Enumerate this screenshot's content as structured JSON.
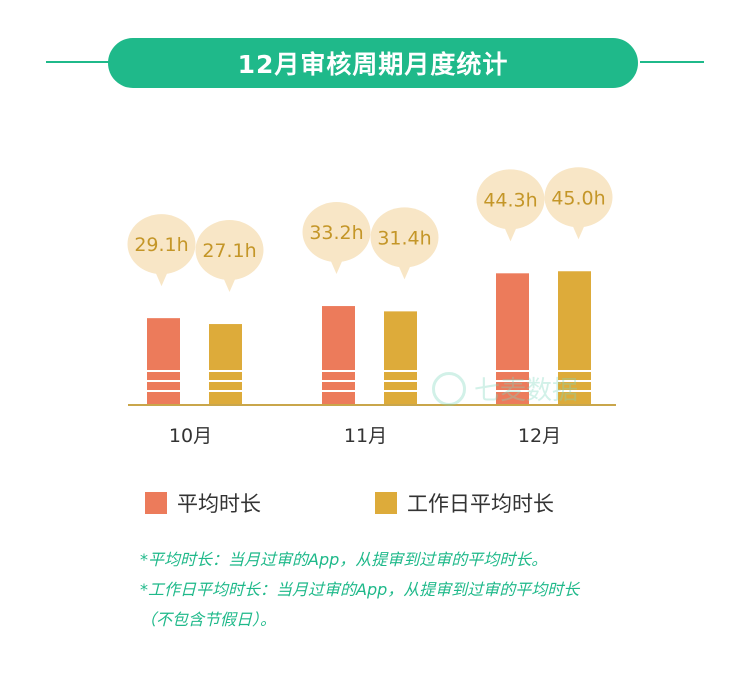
{
  "title": "12月审核周期月度统计",
  "colors": {
    "accent": "#1fb98a",
    "series_avg": "#ec7b5b",
    "series_workday": "#ddab3a",
    "bubble": "#f8e6c6",
    "bubble_text": "#c49628",
    "axis": "#c9a64b"
  },
  "watermark": {
    "icon": "cat-face-icon",
    "text": "七麦数据"
  },
  "chart_data": {
    "type": "bar",
    "categories": [
      "10月",
      "11月",
      "12月"
    ],
    "series": [
      {
        "name": "平均时长",
        "values": [
          29.1,
          33.2,
          44.3
        ]
      },
      {
        "name": "工作日平均时长",
        "values": [
          27.1,
          31.4,
          45.0
        ]
      }
    ],
    "data_labels": [
      [
        "29.1h",
        "33.2h",
        "44.3h"
      ],
      [
        "27.1h",
        "31.4h",
        "45.0h"
      ]
    ],
    "unit": "h",
    "ylim": [
      0,
      50
    ],
    "grid": false,
    "legend_position": "bottom"
  },
  "legend": [
    {
      "label": "平均时长"
    },
    {
      "label": "工作日平均时长"
    }
  ],
  "notes": [
    "*平均时长：当月过审的App，从提审到过审的平均时长。",
    "*工作日平均时长：当月过审的App，从提审到过审的平均时长",
    "（不包含节假日）。"
  ]
}
